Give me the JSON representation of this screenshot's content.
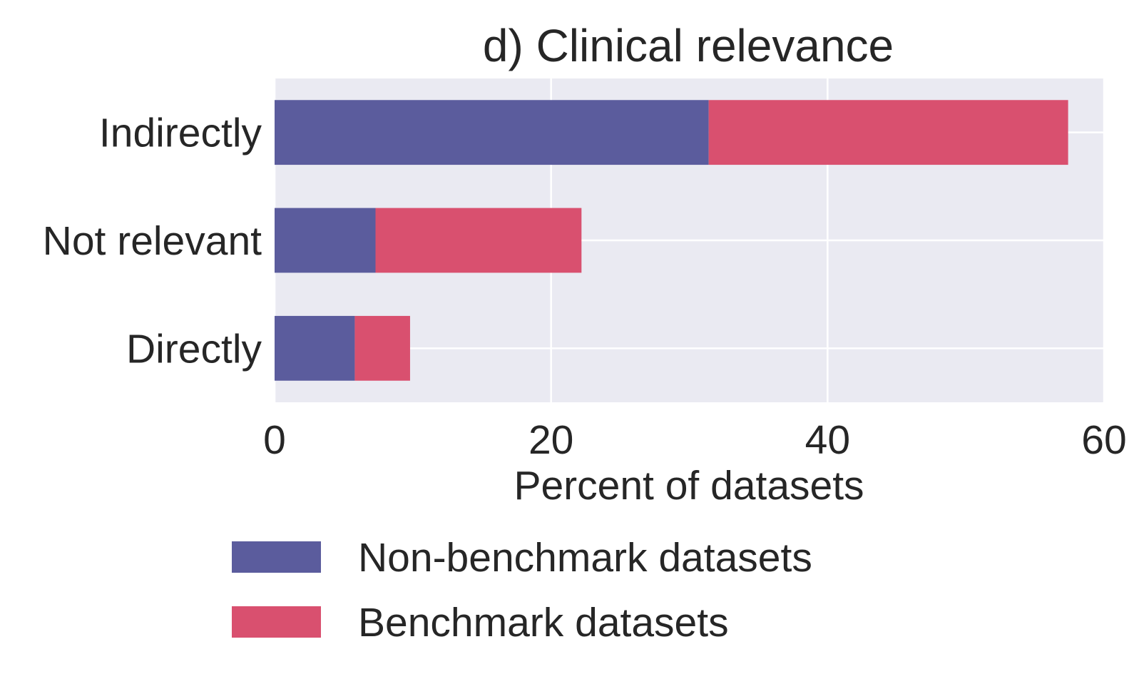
{
  "chart_data": {
    "type": "bar",
    "orientation": "horizontal",
    "stacked": true,
    "title": "d) Clinical relevance",
    "xlabel": "Percent of datasets",
    "ylabel": "",
    "xlim": [
      0,
      60
    ],
    "xticks": [
      0,
      20,
      40,
      60
    ],
    "xtick_labels": [
      "0",
      "20",
      "40",
      "60"
    ],
    "categories": [
      "Indirectly",
      "Not relevant",
      "Directly"
    ],
    "series": [
      {
        "name": "Non-benchmark datasets",
        "values": [
          31.4,
          7.3,
          5.8
        ],
        "color": "#5b5c9d"
      },
      {
        "name": "Benchmark datasets",
        "values": [
          26.0,
          14.9,
          4.0
        ],
        "color": "#d9506f"
      }
    ],
    "grid": true,
    "plot_background": "#eaeaf2",
    "grid_color": "#ffffff",
    "legend_position": "bottom"
  }
}
